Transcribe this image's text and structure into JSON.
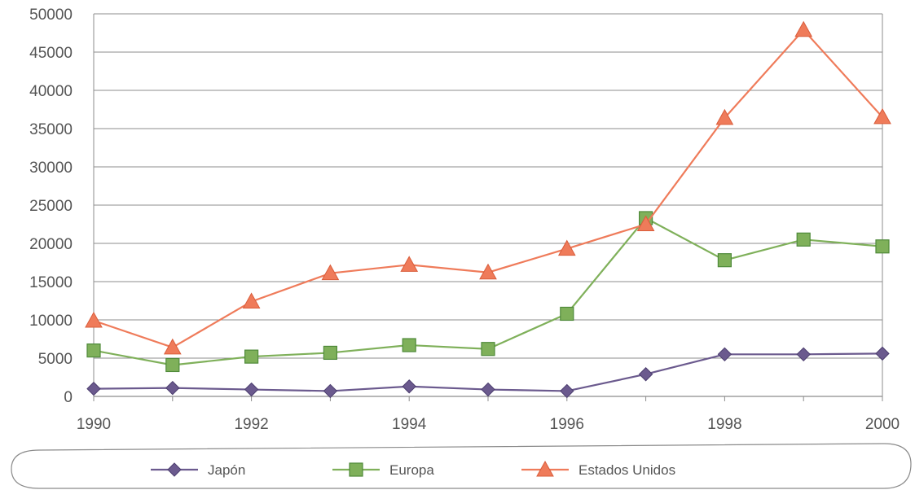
{
  "chart_data": {
    "type": "line",
    "title": "",
    "xlabel": "",
    "ylabel": "",
    "x": [
      1990,
      1991,
      1992,
      1993,
      1994,
      1995,
      1996,
      1997,
      1998,
      1999,
      2000
    ],
    "x_tick_labels": [
      "1990",
      "1992",
      "1994",
      "1996",
      "1998",
      "2000"
    ],
    "y_tick_labels": [
      "0",
      "5000",
      "10000",
      "15000",
      "20000",
      "25000",
      "30000",
      "35000",
      "40000",
      "45000",
      "50000"
    ],
    "ylim": [
      0,
      50000
    ],
    "xlim": [
      1990,
      2000
    ],
    "grid": "horizontal",
    "legend_position": "bottom",
    "series": [
      {
        "name": "Japón",
        "marker": "diamond",
        "color": "#6b5a8e",
        "values": [
          1000,
          1100,
          900,
          700,
          1300,
          900,
          700,
          2900,
          5500,
          5500,
          5600
        ]
      },
      {
        "name": "Europa",
        "marker": "square",
        "color": "#7fb05a",
        "values": [
          6000,
          4100,
          5200,
          5700,
          6700,
          6200,
          10800,
          23300,
          17800,
          20500,
          19600
        ]
      },
      {
        "name": "Estados Unidos",
        "marker": "triangle",
        "color": "#ef7b5a",
        "values": [
          9900,
          6400,
          12400,
          16100,
          17200,
          16200,
          19300,
          22500,
          36400,
          47900,
          36500
        ]
      }
    ]
  }
}
